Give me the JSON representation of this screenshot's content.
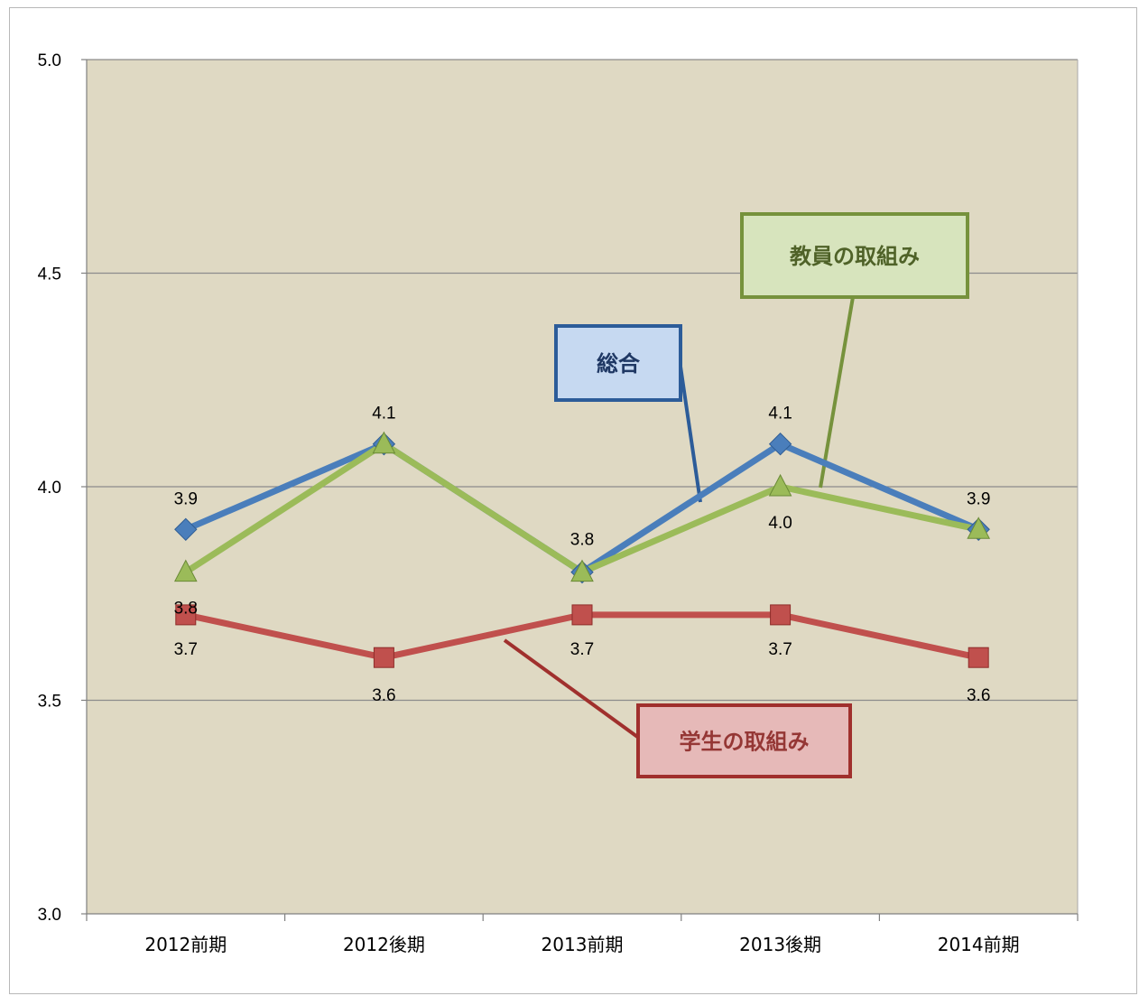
{
  "chart_data": {
    "type": "line",
    "categories": [
      "2012前期",
      "2012後期",
      "2013前期",
      "2013後期",
      "2014前期"
    ],
    "ylim": [
      3.0,
      5.0
    ],
    "yticks": [
      "3.0",
      "3.5",
      "4.0",
      "4.5",
      "5.0"
    ],
    "grid": true,
    "plot_background": "#dfd9c3",
    "series": [
      {
        "name": "総合",
        "values": [
          3.9,
          4.1,
          3.8,
          4.1,
          3.9
        ],
        "labels": [
          "3.9",
          "4.1",
          "3.8",
          "4.1",
          "3.9"
        ],
        "color": "#4a7ebb",
        "marker": "diamond"
      },
      {
        "name": "教員の取組み",
        "values": [
          3.8,
          4.1,
          3.8,
          4.0,
          3.9
        ],
        "labels": [
          "3.8",
          "",
          "",
          "4.0",
          ""
        ],
        "color": "#9bbb59",
        "marker": "triangle"
      },
      {
        "name": "学生の取組み",
        "values": [
          3.7,
          3.6,
          3.7,
          3.7,
          3.6
        ],
        "labels": [
          "3.7",
          "3.6",
          "3.7",
          "3.7",
          "3.6"
        ],
        "color": "#c0504d",
        "marker": "square"
      }
    ],
    "callouts": [
      {
        "text": "総合",
        "fill": "#c6d9f1",
        "border": "#2c5c99",
        "text_color": "#1f3864",
        "series": 0
      },
      {
        "text": "教員の取組み",
        "fill": "#d7e4bd",
        "border": "#76923c",
        "text_color": "#4f6228",
        "series": 1
      },
      {
        "text": "学生の取組み",
        "fill": "#e6b9b8",
        "border": "#a0302d",
        "text_color": "#953735",
        "series": 2
      }
    ]
  }
}
